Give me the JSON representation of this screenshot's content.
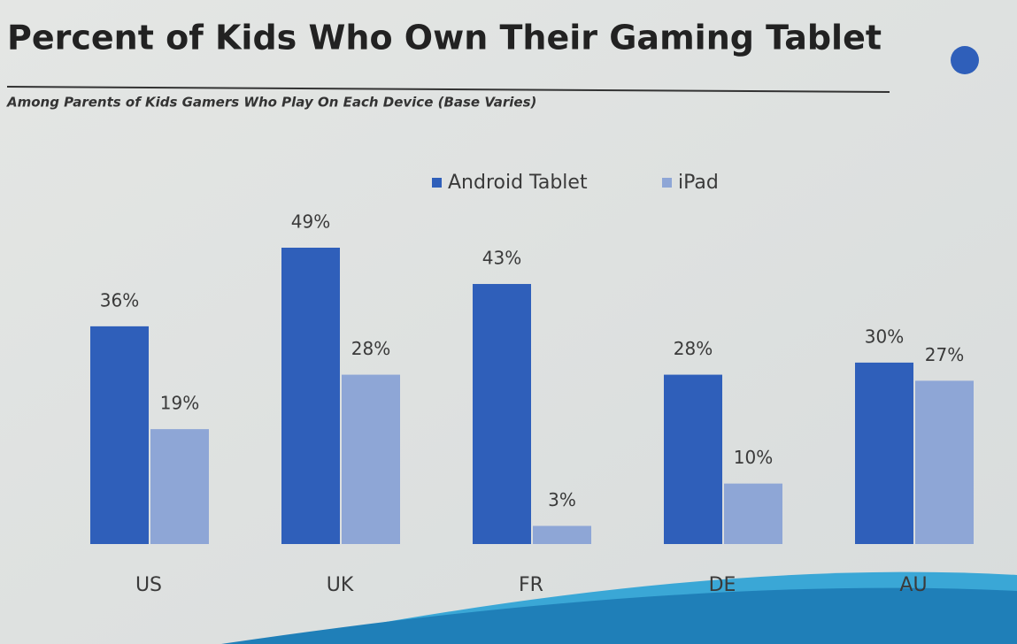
{
  "chart_data": {
    "type": "bar",
    "title": "Percent of Kids Who Own Their Gaming Tablet",
    "subtitle": "Among Parents of Kids Gamers Who Play On Each Device (Base Varies)",
    "categories": [
      "US",
      "UK",
      "FR",
      "DE",
      "AU"
    ],
    "series": [
      {
        "name": "Android Tablet",
        "color": "#2f5fba",
        "values": [
          36,
          49,
          43,
          28,
          30
        ],
        "value_labels": [
          "36%",
          "49%",
          "43%",
          "28%",
          "30%"
        ]
      },
      {
        "name": "iPad",
        "color": "#8ea6d6",
        "values": [
          19,
          28,
          3,
          10,
          27
        ],
        "value_labels": [
          "19%",
          "28%",
          "3%",
          "10%",
          "27%"
        ]
      }
    ]
  }
}
